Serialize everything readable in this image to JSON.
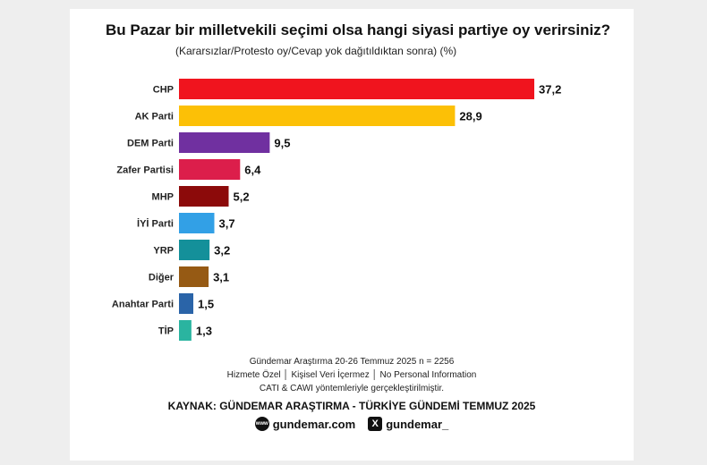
{
  "header": {
    "title": "Bu Pazar bir milletvekili seçimi olsa hangi siyasi partiye oy verirsiniz?",
    "subtitle": "(Kararsızlar/Protesto oy/Cevap yok dağıtıldıktan sonra) (%)"
  },
  "chart_data": {
    "type": "bar",
    "orientation": "horizontal",
    "categories": [
      "CHP",
      "AK Parti",
      "DEM Parti",
      "Zafer Partisi",
      "MHP",
      "İYİ Parti",
      "YRP",
      "Diğer",
      "Anahtar Parti",
      "TİP"
    ],
    "values": [
      37.2,
      28.9,
      9.5,
      6.4,
      5.2,
      3.7,
      3.2,
      3.1,
      1.5,
      1.3
    ],
    "value_labels": [
      "37,2",
      "28,9",
      "9,5",
      "6,4",
      "5,2",
      "3,7",
      "3,2",
      "3,1",
      "1,5",
      "1,3"
    ],
    "colors": [
      "#f0141e",
      "#fcc006",
      "#7030a0",
      "#dc1e4b",
      "#8c0a0a",
      "#32a0e6",
      "#14909a",
      "#965a14",
      "#2a64a8",
      "#2ab4a0"
    ],
    "title": "Bu Pazar bir milletvekili seçimi olsa hangi siyasi partiye oy verirsiniz?",
    "subtitle": "(Kararsızlar/Protesto oy/Cevap yok dağıtıldıktan sonra) (%)",
    "xlim": [
      0,
      37.2
    ],
    "grid": false,
    "legend": "none"
  },
  "footer": {
    "line1": "Gündemar Araştırma 20-26 Temmuz 2025 n = 2256",
    "line2": "Hizmete Özel │ Kişisel Veri İçermez │ No Personal Information",
    "line3": "CATI & CAWI yöntemleriyle gerçekleştirilmiştir.",
    "source": "KAYNAK: GÜNDEMAR ARAŞTIRMA - TÜRKİYE GÜNDEMİ TEMMUZ 2025",
    "website": "gundemar.com",
    "website_icon_text": "www",
    "x_handle": "gundemar_",
    "x_icon_text": "X"
  }
}
